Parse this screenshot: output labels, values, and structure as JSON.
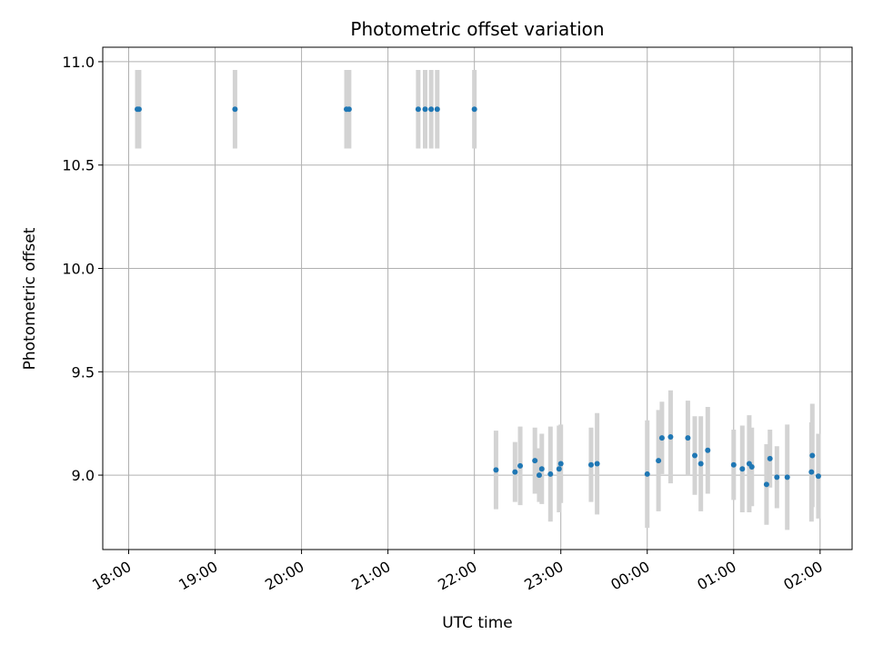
{
  "chart_data": {
    "type": "scatter",
    "title": "Photometric offset variation",
    "xlabel": "UTC time",
    "ylabel": "Photometric offset",
    "x_tick_labels": [
      "18:00",
      "19:00",
      "20:00",
      "21:00",
      "22:00",
      "23:00",
      "00:00",
      "01:00",
      "02:00"
    ],
    "x_tick_hours": [
      0,
      1,
      2,
      3,
      4,
      5,
      6,
      7,
      8
    ],
    "xlim_hours": [
      -0.3,
      8.37
    ],
    "y_ticks": [
      9.0,
      9.5,
      10.0,
      10.5,
      11.0
    ],
    "y_tick_labels": [
      "9.0",
      "9.5",
      "10.0",
      "10.5",
      "11.0"
    ],
    "ylim": [
      8.64,
      11.07
    ],
    "grid": true,
    "colors": {
      "point": "#1f77b4",
      "errorbar": "#d3d3d3",
      "grid": "#b0b0b0"
    },
    "points": [
      {
        "x": 0.1,
        "y": 10.77,
        "err": 0.19
      },
      {
        "x": 0.12,
        "y": 10.77,
        "err": 0.19
      },
      {
        "x": 1.23,
        "y": 10.77,
        "err": 0.19
      },
      {
        "x": 2.52,
        "y": 10.77,
        "err": 0.19
      },
      {
        "x": 2.55,
        "y": 10.77,
        "err": 0.19
      },
      {
        "x": 3.35,
        "y": 10.77,
        "err": 0.19
      },
      {
        "x": 3.43,
        "y": 10.77,
        "err": 0.19
      },
      {
        "x": 3.5,
        "y": 10.77,
        "err": 0.19
      },
      {
        "x": 3.57,
        "y": 10.77,
        "err": 0.19
      },
      {
        "x": 4.0,
        "y": 10.77,
        "err": 0.19
      },
      {
        "x": 4.25,
        "y": 9.025,
        "err": 0.19
      },
      {
        "x": 4.47,
        "y": 9.015,
        "err": 0.145
      },
      {
        "x": 4.53,
        "y": 9.045,
        "err": 0.19
      },
      {
        "x": 4.7,
        "y": 9.07,
        "err": 0.16
      },
      {
        "x": 4.75,
        "y": 9.0,
        "err": 0.13
      },
      {
        "x": 4.78,
        "y": 9.03,
        "err": 0.17
      },
      {
        "x": 4.88,
        "y": 9.005,
        "err": 0.23
      },
      {
        "x": 4.98,
        "y": 9.03,
        "err": 0.21
      },
      {
        "x": 5.0,
        "y": 9.055,
        "err": 0.19
      },
      {
        "x": 5.35,
        "y": 9.05,
        "err": 0.18
      },
      {
        "x": 5.42,
        "y": 9.055,
        "err": 0.245
      },
      {
        "x": 6.0,
        "y": 9.005,
        "err": 0.26
      },
      {
        "x": 6.13,
        "y": 9.07,
        "err": 0.245
      },
      {
        "x": 6.17,
        "y": 9.18,
        "err": 0.175
      },
      {
        "x": 6.27,
        "y": 9.185,
        "err": 0.225
      },
      {
        "x": 6.47,
        "y": 9.18,
        "err": 0.18
      },
      {
        "x": 6.55,
        "y": 9.095,
        "err": 0.19
      },
      {
        "x": 6.62,
        "y": 9.055,
        "err": 0.23
      },
      {
        "x": 6.7,
        "y": 9.12,
        "err": 0.21
      },
      {
        "x": 7.0,
        "y": 9.05,
        "err": 0.17
      },
      {
        "x": 7.1,
        "y": 9.03,
        "err": 0.21
      },
      {
        "x": 7.18,
        "y": 9.055,
        "err": 0.235
      },
      {
        "x": 7.21,
        "y": 9.04,
        "err": 0.19
      },
      {
        "x": 7.38,
        "y": 8.955,
        "err": 0.195
      },
      {
        "x": 7.42,
        "y": 9.08,
        "err": 0.14
      },
      {
        "x": 7.5,
        "y": 8.99,
        "err": 0.15
      },
      {
        "x": 7.62,
        "y": 8.99,
        "err": 0.255
      },
      {
        "x": 7.9,
        "y": 9.015,
        "err": 0.24
      },
      {
        "x": 7.91,
        "y": 9.095,
        "err": 0.25
      },
      {
        "x": 7.98,
        "y": 8.995,
        "err": 0.205
      }
    ]
  }
}
